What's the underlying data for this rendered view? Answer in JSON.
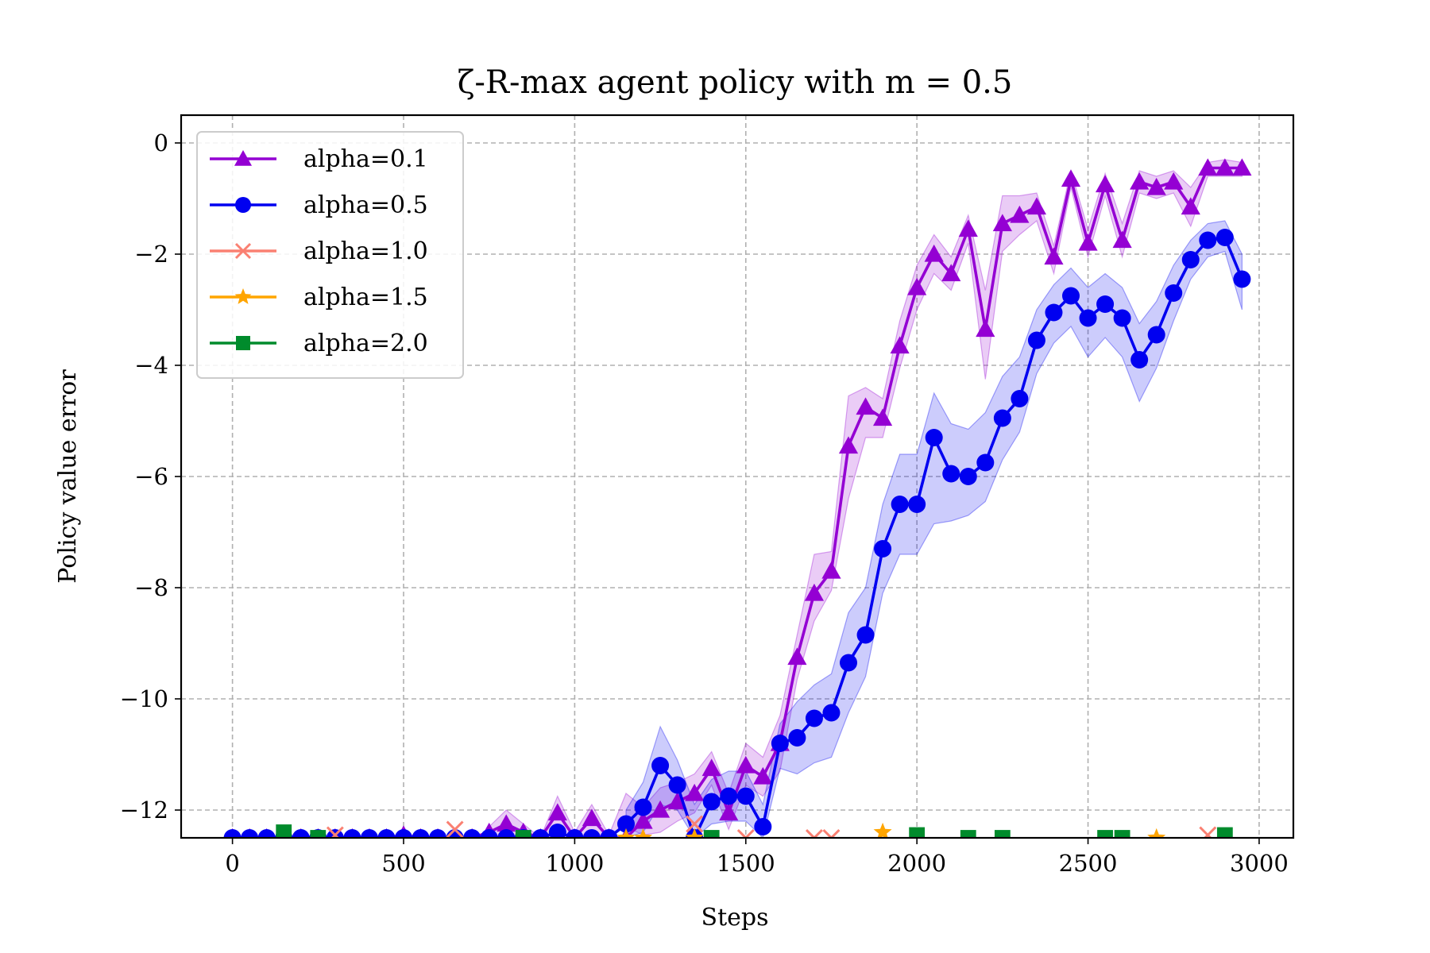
{
  "chart_data": {
    "type": "line",
    "title": "ζ-R-max agent policy with m = 0.5",
    "xlabel": "Steps",
    "ylabel": "Policy value error",
    "xlim": [
      -150,
      3100
    ],
    "ylim": [
      -12.5,
      0.5
    ],
    "xticks": [
      0,
      500,
      1000,
      1500,
      2000,
      2500,
      3000
    ],
    "yticks": [
      0,
      -2,
      -4,
      -6,
      -8,
      -10,
      -12
    ],
    "xtick_labels": [
      "0",
      "500",
      "1000",
      "1500",
      "2000",
      "2500",
      "3000"
    ],
    "ytick_labels": [
      "0",
      "−2",
      "−4",
      "−6",
      "−8",
      "−10",
      "−12"
    ],
    "grid": true,
    "legend_position": "top-left",
    "series": [
      {
        "name": "alpha=0.1",
        "color": "#9400D3",
        "marker": "triangle",
        "x": [
          0,
          50,
          100,
          150,
          200,
          250,
          300,
          350,
          400,
          450,
          500,
          550,
          600,
          650,
          700,
          750,
          800,
          850,
          900,
          950,
          1000,
          1050,
          1100,
          1150,
          1200,
          1250,
          1300,
          1350,
          1400,
          1450,
          1500,
          1550,
          1600,
          1650,
          1700,
          1750,
          1800,
          1850,
          1900,
          1950,
          2000,
          2050,
          2100,
          2150,
          2200,
          2250,
          2300,
          2350,
          2400,
          2450,
          2500,
          2550,
          2600,
          2650,
          2700,
          2750,
          2800,
          2850,
          2900,
          2950
        ],
        "y": [
          -12.5,
          -12.5,
          -12.5,
          -12.5,
          -12.5,
          -12.5,
          -12.5,
          -12.5,
          -12.5,
          -12.5,
          -12.45,
          -12.5,
          -12.5,
          -12.5,
          -12.5,
          -12.4,
          -12.25,
          -12.4,
          -12.5,
          -12.05,
          -12.5,
          -12.15,
          -12.5,
          -12.5,
          -12.2,
          -12.0,
          -11.85,
          -11.7,
          -11.25,
          -12.05,
          -11.2,
          -11.4,
          -10.8,
          -9.25,
          -8.1,
          -7.7,
          -5.45,
          -4.75,
          -4.95,
          -3.65,
          -2.6,
          -2.0,
          -2.35,
          -1.55,
          -3.35,
          -1.45,
          -1.3,
          -1.15,
          -2.05,
          -0.65,
          -1.8,
          -0.75,
          -1.75,
          -0.7,
          -0.8,
          -0.7,
          -1.15,
          -0.45,
          -0.45,
          -0.45
        ]
      },
      {
        "name": "alpha=0.5",
        "color": "#0000F0",
        "marker": "circle",
        "x": [
          0,
          50,
          100,
          150,
          200,
          250,
          300,
          350,
          400,
          450,
          500,
          550,
          600,
          650,
          700,
          750,
          800,
          850,
          900,
          950,
          1000,
          1050,
          1100,
          1150,
          1200,
          1250,
          1300,
          1350,
          1400,
          1450,
          1500,
          1550,
          1600,
          1650,
          1700,
          1750,
          1800,
          1850,
          1900,
          1950,
          2000,
          2050,
          2100,
          2150,
          2200,
          2250,
          2300,
          2350,
          2400,
          2450,
          2500,
          2550,
          2600,
          2650,
          2700,
          2750,
          2800,
          2850,
          2900,
          2950
        ],
        "y": [
          -12.5,
          -12.5,
          -12.5,
          -12.5,
          -12.5,
          -12.5,
          -12.5,
          -12.5,
          -12.5,
          -12.5,
          -12.5,
          -12.5,
          -12.5,
          -12.5,
          -12.5,
          -12.5,
          -12.5,
          -12.5,
          -12.5,
          -12.4,
          -12.5,
          -12.5,
          -12.5,
          -12.25,
          -11.95,
          -11.2,
          -11.55,
          -12.5,
          -11.85,
          -11.75,
          -11.75,
          -12.3,
          -10.8,
          -10.7,
          -10.35,
          -10.25,
          -9.35,
          -8.85,
          -7.3,
          -6.5,
          -6.5,
          -5.3,
          -5.95,
          -6.0,
          -5.75,
          -4.95,
          -4.6,
          -3.55,
          -3.05,
          -2.75,
          -3.15,
          -2.9,
          -3.15,
          -3.9,
          -3.45,
          -2.7,
          -2.1,
          -1.75,
          -1.7,
          -2.45
        ]
      },
      {
        "name": "alpha=1.0",
        "color": "#FA8072",
        "marker": "x",
        "x": [
          300,
          650,
          1350,
          1500,
          1700,
          1750,
          2850
        ],
        "y": [
          -12.45,
          -12.35,
          -12.25,
          -12.5,
          -12.5,
          -12.5,
          -12.45
        ]
      },
      {
        "name": "alpha=1.5",
        "color": "#FFA500",
        "marker": "star",
        "x": [
          1150,
          1200,
          1350,
          1900,
          2700
        ],
        "y": [
          -12.5,
          -12.5,
          -12.5,
          -12.4,
          -12.5
        ]
      },
      {
        "name": "alpha=2.0",
        "color": "#008B2C",
        "marker": "square",
        "x": [
          150,
          250,
          850,
          1400,
          2000,
          2150,
          2250,
          2550,
          2600,
          2900
        ],
        "y": [
          -12.4,
          -12.5,
          -12.5,
          -12.5,
          -12.45,
          -12.5,
          -12.5,
          -12.5,
          -12.5,
          -12.45
        ]
      }
    ],
    "bands": [
      {
        "series": "alpha=0.1",
        "x": [
          750,
          800,
          850,
          900,
          950,
          1000,
          1050,
          1100,
          1150,
          1200,
          1250,
          1300,
          1350,
          1400,
          1450,
          1500,
          1550,
          1600,
          1650,
          1700,
          1750,
          1800,
          1850,
          1900,
          1950,
          2000,
          2050,
          2100,
          2150,
          2200,
          2250,
          2300,
          2350,
          2400,
          2450,
          2500,
          2550,
          2600,
          2650,
          2700,
          2750,
          2800,
          2850,
          2900,
          2950
        ],
        "upper": [
          -12.3,
          -12.0,
          -12.25,
          -12.5,
          -11.75,
          -12.4,
          -11.9,
          -12.45,
          -11.7,
          -11.95,
          -11.6,
          -11.5,
          -11.35,
          -10.95,
          -11.7,
          -10.8,
          -11.05,
          -10.3,
          -8.85,
          -7.4,
          -7.35,
          -4.55,
          -4.4,
          -4.6,
          -3.2,
          -2.2,
          -1.65,
          -2.05,
          -1.3,
          -2.65,
          -0.95,
          -0.95,
          -0.9,
          -1.85,
          -0.5,
          -1.55,
          -0.55,
          -1.45,
          -0.5,
          -0.6,
          -0.5,
          -0.8,
          -0.35,
          -0.3,
          -0.35
        ],
        "lower": [
          -12.5,
          -12.5,
          -12.5,
          -12.5,
          -12.4,
          -12.5,
          -12.4,
          -12.5,
          -12.3,
          -12.45,
          -12.4,
          -12.2,
          -12.05,
          -11.55,
          -12.35,
          -11.55,
          -11.75,
          -11.3,
          -9.65,
          -8.6,
          -8.05,
          -6.4,
          -5.3,
          -5.3,
          -4.05,
          -3.0,
          -2.35,
          -2.65,
          -1.8,
          -4.25,
          -1.95,
          -1.65,
          -1.4,
          -2.35,
          -0.8,
          -2.05,
          -0.95,
          -2.05,
          -0.9,
          -1.0,
          -0.9,
          -1.5,
          -0.6,
          -0.6,
          -0.6
        ]
      },
      {
        "series": "alpha=0.5",
        "x": [
          1150,
          1200,
          1250,
          1300,
          1350,
          1400,
          1450,
          1500,
          1550,
          1600,
          1650,
          1700,
          1750,
          1800,
          1850,
          1900,
          1950,
          2000,
          2050,
          2100,
          2150,
          2200,
          2250,
          2300,
          2350,
          2400,
          2450,
          2500,
          2550,
          2600,
          2650,
          2700,
          2750,
          2800,
          2850,
          2900,
          2950
        ],
        "upper": [
          -12.0,
          -11.5,
          -10.5,
          -11.1,
          -11.9,
          -11.45,
          -11.3,
          -11.3,
          -11.9,
          -10.45,
          -10.05,
          -9.75,
          -9.55,
          -8.45,
          -8.0,
          -6.5,
          -5.6,
          -5.6,
          -4.5,
          -5.05,
          -5.15,
          -4.85,
          -4.2,
          -3.85,
          -3.0,
          -2.55,
          -2.25,
          -2.6,
          -2.35,
          -2.6,
          -3.25,
          -2.85,
          -2.2,
          -1.75,
          -1.45,
          -1.4,
          -2.0
        ],
        "lower": [
          -12.5,
          -12.4,
          -11.9,
          -12.0,
          -12.5,
          -12.25,
          -12.2,
          -12.2,
          -12.5,
          -11.25,
          -11.35,
          -11.15,
          -11.05,
          -10.25,
          -9.6,
          -8.1,
          -7.4,
          -7.4,
          -6.85,
          -6.8,
          -6.7,
          -6.45,
          -5.7,
          -5.2,
          -4.15,
          -3.6,
          -3.3,
          -3.85,
          -3.5,
          -3.85,
          -4.65,
          -4.05,
          -3.2,
          -2.45,
          -2.05,
          -1.95,
          -3.0
        ]
      }
    ]
  }
}
